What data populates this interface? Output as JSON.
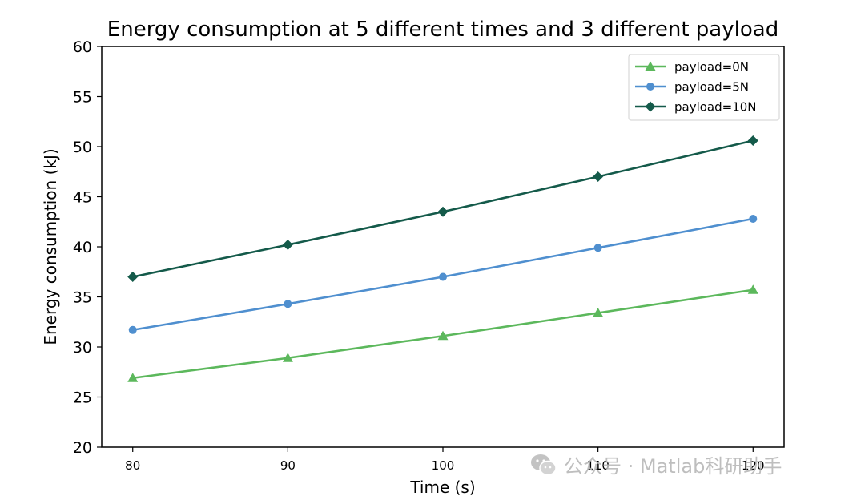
{
  "chart_data": {
    "type": "line",
    "title": "Energy consumption at 5 different times and 3 different payload",
    "xlabel": "Time (s)",
    "ylabel": "Energy consumption (kJ)",
    "x": [
      80,
      90,
      100,
      110,
      120
    ],
    "xlim": [
      78,
      122
    ],
    "ylim": [
      20,
      60
    ],
    "xticks": [
      "80",
      "90",
      "100",
      "110",
      "120"
    ],
    "yticks": [
      "20",
      "25",
      "30",
      "35",
      "40",
      "45",
      "50",
      "55",
      "60"
    ],
    "grid": false,
    "legend_position": "top-right",
    "series": [
      {
        "name": "payload=0N",
        "values": [
          26.9,
          28.9,
          31.1,
          33.4,
          35.7
        ],
        "color": "#5cb85c",
        "marker": "triangle"
      },
      {
        "name": "payload=5N",
        "values": [
          31.7,
          34.3,
          37.0,
          39.9,
          42.8
        ],
        "color": "#4f8fcf",
        "marker": "circle"
      },
      {
        "name": "payload=10N",
        "values": [
          37.0,
          40.2,
          43.5,
          47.0,
          50.6
        ],
        "color": "#145a4a",
        "marker": "diamond"
      }
    ]
  },
  "watermark": {
    "icon": "wechat-icon",
    "text": "公众号 · Matlab科研助手"
  }
}
